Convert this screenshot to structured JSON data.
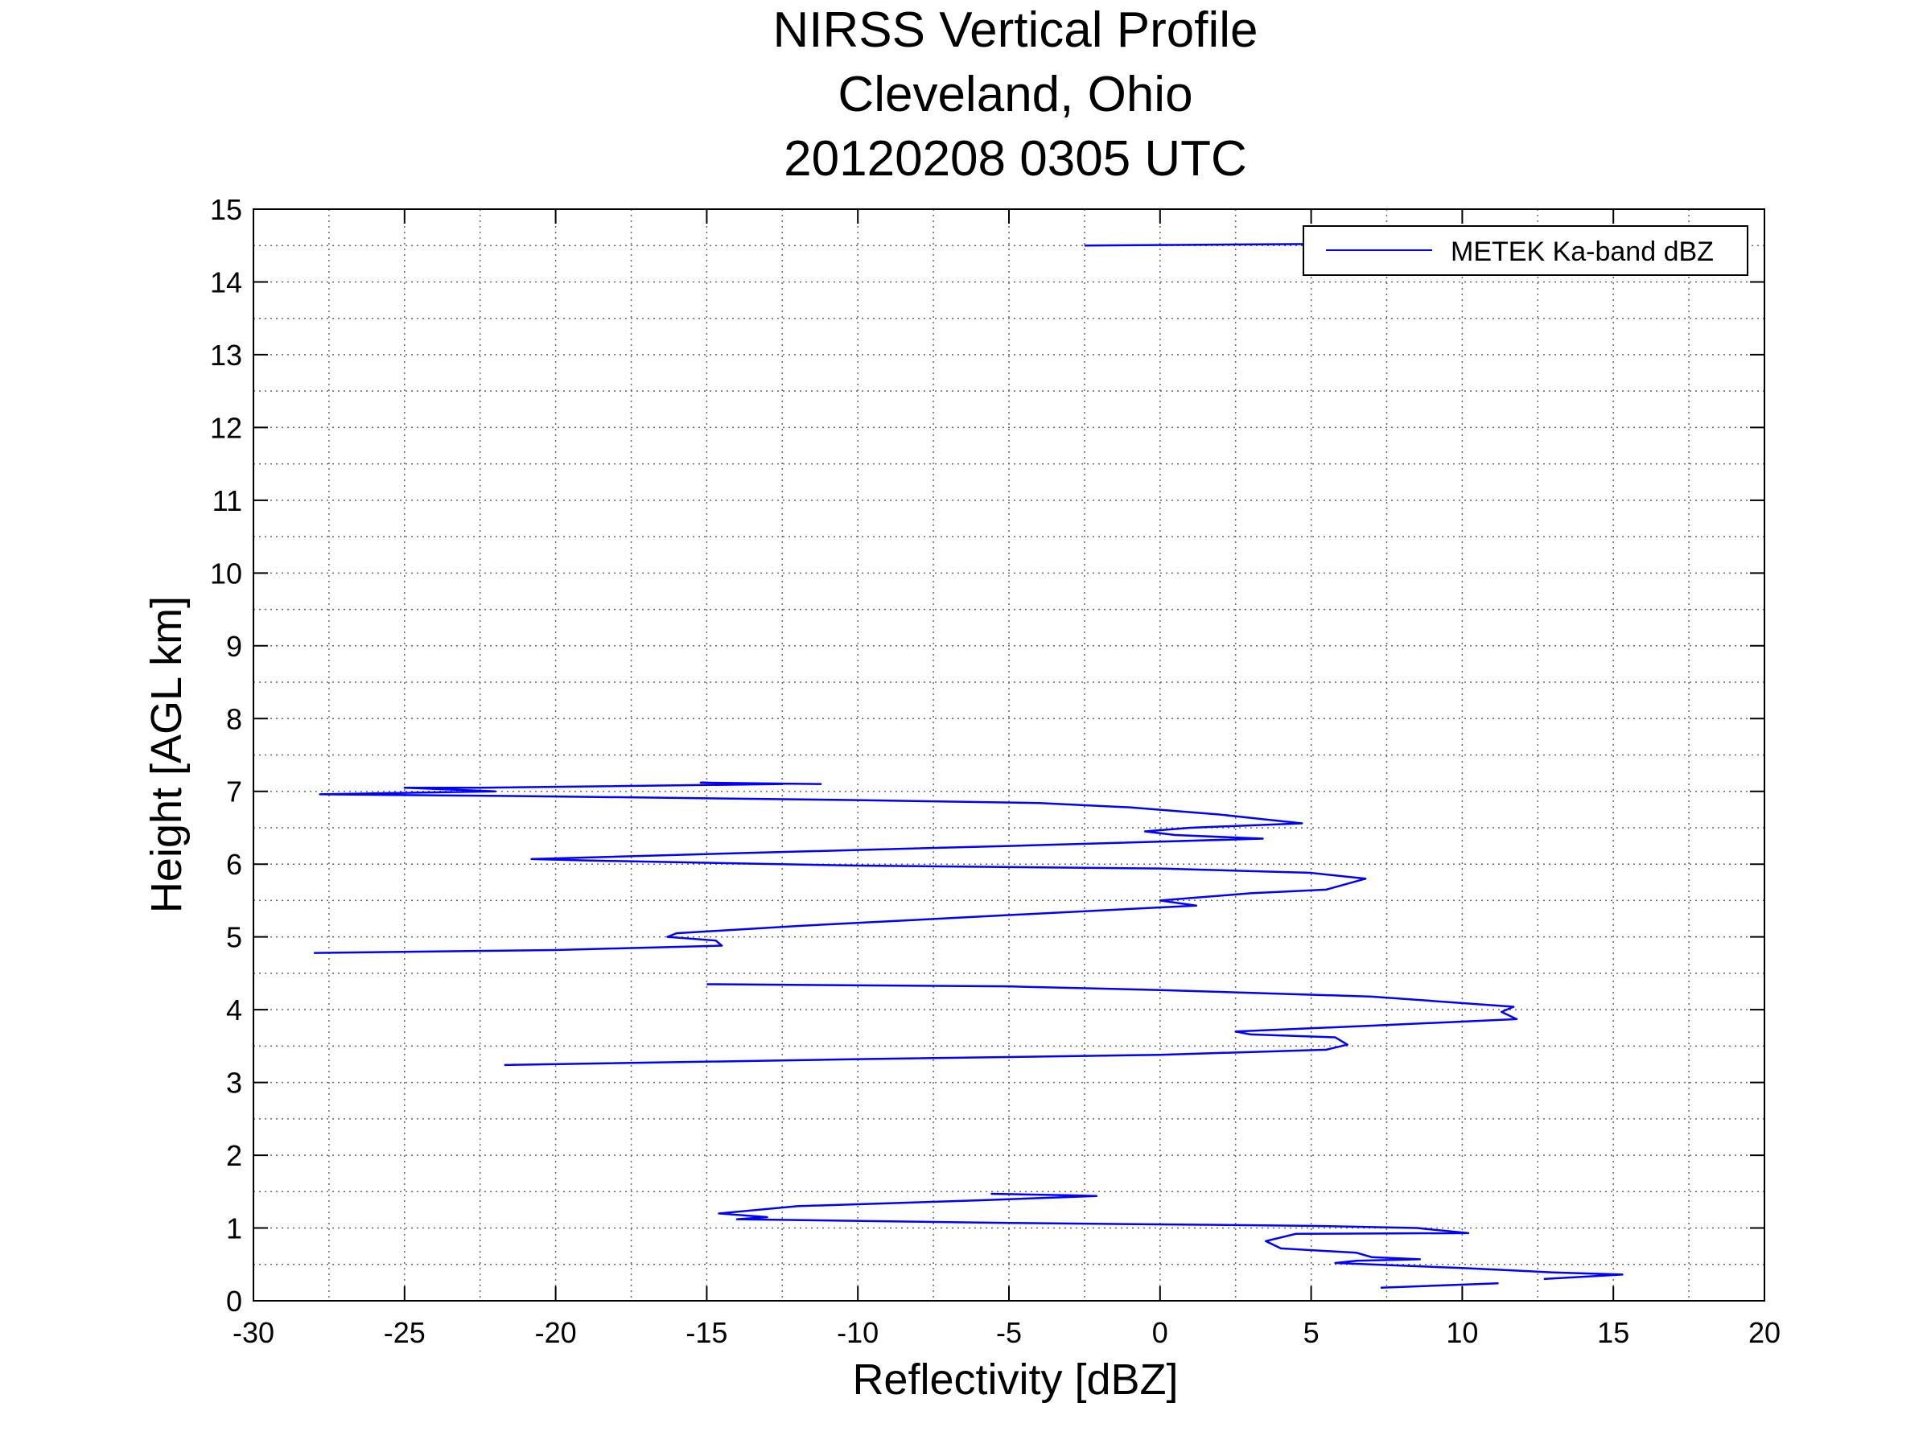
{
  "chart_data": {
    "type": "line",
    "title": [
      "NIRSS Vertical Profile",
      "Cleveland, Ohio",
      "20120208 0305 UTC"
    ],
    "xlabel": "Reflectivity [dBZ]",
    "ylabel": "Height [AGL km]",
    "xlim": [
      -30,
      20
    ],
    "ylim": [
      0,
      15
    ],
    "xticks": [
      "-30",
      "-25",
      "-20",
      "-15",
      "-10",
      "-5",
      "0",
      "5",
      "10",
      "15",
      "20"
    ],
    "yticks": [
      "0",
      "1",
      "2",
      "3",
      "4",
      "5",
      "6",
      "7",
      "8",
      "9",
      "10",
      "11",
      "12",
      "13",
      "14",
      "15"
    ],
    "grid": true,
    "legend_placement": "top-right",
    "series": [
      {
        "name": "METEK Ka-band dBZ",
        "color": "#0000ff",
        "segments": [
          [
            [
              -2.5,
              14.5
            ],
            [
              1,
              14.51
            ],
            [
              4.8,
              14.52
            ]
          ],
          [
            [
              -11.2,
              7.1
            ],
            [
              -15.2,
              7.12
            ],
            [
              -12.5,
              7.1
            ],
            [
              -22.5,
              7.05
            ],
            [
              -25,
              7.05
            ],
            [
              -22,
              7.0
            ],
            [
              -27.8,
              6.96
            ],
            [
              -20,
              6.93
            ],
            [
              -10,
              6.88
            ],
            [
              -4,
              6.84
            ],
            [
              -1,
              6.78
            ],
            [
              2,
              6.68
            ],
            [
              4.7,
              6.56
            ],
            [
              1,
              6.5
            ],
            [
              -0.5,
              6.45
            ],
            [
              0.5,
              6.4
            ],
            [
              3.4,
              6.35
            ],
            [
              -5,
              6.25
            ],
            [
              -14,
              6.15
            ],
            [
              -20.8,
              6.07
            ],
            [
              -19,
              6.05
            ],
            [
              -10,
              5.98
            ],
            [
              0,
              5.94
            ],
            [
              5,
              5.88
            ],
            [
              6.8,
              5.8
            ],
            [
              5.5,
              5.65
            ],
            [
              3,
              5.6
            ],
            [
              0,
              5.5
            ],
            [
              1.2,
              5.43
            ],
            [
              -5,
              5.3
            ],
            [
              -12,
              5.15
            ],
            [
              -16,
              5.05
            ],
            [
              -16.3,
              5.0
            ],
            [
              -14.7,
              4.95
            ],
            [
              -14.5,
              4.88
            ],
            [
              -20,
              4.82
            ],
            [
              -28,
              4.78
            ]
          ],
          [
            [
              -15,
              4.35
            ],
            [
              -5,
              4.32
            ],
            [
              0,
              4.27
            ],
            [
              7,
              4.18
            ],
            [
              11.7,
              4.04
            ],
            [
              11.3,
              3.97
            ],
            [
              11.8,
              3.87
            ],
            [
              7,
              3.78
            ],
            [
              2.5,
              3.7
            ],
            [
              3,
              3.66
            ],
            [
              5.8,
              3.62
            ],
            [
              6.2,
              3.52
            ],
            [
              5.5,
              3.45
            ],
            [
              0,
              3.38
            ],
            [
              -10,
              3.32
            ],
            [
              -21.7,
              3.24
            ]
          ],
          [
            [
              -5.6,
              1.47
            ],
            [
              -3,
              1.45
            ],
            [
              -2.1,
              1.44
            ],
            [
              -6,
              1.38
            ],
            [
              -12,
              1.3
            ],
            [
              -14.6,
              1.2
            ],
            [
              -13,
              1.15
            ],
            [
              -14,
              1.12
            ],
            [
              -5,
              1.07
            ],
            [
              5,
              1.03
            ],
            [
              8.5,
              1.0
            ],
            [
              10.2,
              0.93
            ],
            [
              4.5,
              0.92
            ],
            [
              3.5,
              0.82
            ],
            [
              4,
              0.72
            ],
            [
              6.5,
              0.66
            ],
            [
              7,
              0.6
            ],
            [
              8.6,
              0.57
            ],
            [
              6.5,
              0.55
            ],
            [
              5.8,
              0.52
            ],
            [
              10,
              0.45
            ],
            [
              13,
              0.39
            ],
            [
              15.3,
              0.36
            ],
            [
              12.7,
              0.3
            ]
          ],
          [
            [
              7.3,
              0.18
            ],
            [
              11.2,
              0.24
            ]
          ]
        ]
      }
    ]
  }
}
